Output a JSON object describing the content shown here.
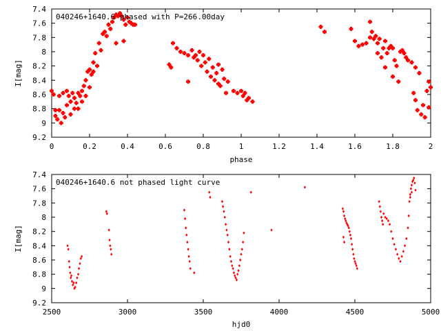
{
  "chart_data": [
    {
      "type": "scatter",
      "title": "040246+1640.6 phased with P=266.00day",
      "xlabel": "phase",
      "ylabel": "I[mag]",
      "xlim": [
        0,
        2
      ],
      "ylim": [
        9.2,
        7.4
      ],
      "y_inverted": true,
      "xticks": [
        0,
        0.2,
        0.4,
        0.6,
        0.8,
        1,
        1.2,
        1.4,
        1.6,
        1.8,
        2
      ],
      "xtick_labels": [
        "0",
        "0.2",
        "0.4",
        "0.6",
        "0.8",
        "1",
        "1.2",
        "1.4",
        "1.6",
        "1.8",
        "2"
      ],
      "yticks": [
        7.4,
        7.6,
        7.8,
        8,
        8.2,
        8.4,
        8.6,
        8.8,
        9,
        9.2
      ],
      "ytick_labels": [
        "7.4",
        "7.6",
        "7.8",
        "8",
        "8.2",
        "8.4",
        "8.6",
        "8.8",
        "9",
        "9.2"
      ],
      "grid": false,
      "marker_color": "#ff0000",
      "marker": "cross",
      "series": [
        {
          "points": [
            [
              0.0,
              8.55
            ],
            [
              0.01,
              8.6
            ],
            [
              0.02,
              8.82
            ],
            [
              0.02,
              8.9
            ],
            [
              0.03,
              8.95
            ],
            [
              0.04,
              8.62
            ],
            [
              0.04,
              8.82
            ],
            [
              0.05,
              9.0
            ],
            [
              0.06,
              8.58
            ],
            [
              0.06,
              8.86
            ],
            [
              0.07,
              8.92
            ],
            [
              0.08,
              8.55
            ],
            [
              0.08,
              8.75
            ],
            [
              0.09,
              8.62
            ],
            [
              0.1,
              8.7
            ],
            [
              0.1,
              8.88
            ],
            [
              0.11,
              8.58
            ],
            [
              0.12,
              8.8
            ],
            [
              0.12,
              8.65
            ],
            [
              0.13,
              8.72
            ],
            [
              0.14,
              8.58
            ],
            [
              0.14,
              8.8
            ],
            [
              0.15,
              8.62
            ],
            [
              0.16,
              8.55
            ],
            [
              0.16,
              8.7
            ],
            [
              0.17,
              8.48
            ],
            [
              0.18,
              8.62
            ],
            [
              0.18,
              8.4
            ],
            [
              0.19,
              8.28
            ],
            [
              0.2,
              8.5
            ],
            [
              0.2,
              8.25
            ],
            [
              0.21,
              8.32
            ],
            [
              0.22,
              8.15
            ],
            [
              0.22,
              8.28
            ],
            [
              0.23,
              8.02
            ],
            [
              0.24,
              8.2
            ],
            [
              0.25,
              7.88
            ],
            [
              0.26,
              7.98
            ],
            [
              0.27,
              7.75
            ],
            [
              0.28,
              7.72
            ],
            [
              0.29,
              7.78
            ],
            [
              0.3,
              7.62
            ],
            [
              0.31,
              7.68
            ],
            [
              0.32,
              7.58
            ],
            [
              0.33,
              7.52
            ],
            [
              0.34,
              7.48
            ],
            [
              0.35,
              7.5
            ],
            [
              0.36,
              7.46
            ],
            [
              0.37,
              7.5
            ],
            [
              0.38,
              7.55
            ],
            [
              0.39,
              7.62
            ],
            [
              0.4,
              7.52
            ],
            [
              0.41,
              7.58
            ],
            [
              0.42,
              7.6
            ],
            [
              0.43,
              7.62
            ],
            [
              0.44,
              7.62
            ],
            [
              0.38,
              7.85
            ],
            [
              0.34,
              7.88
            ],
            [
              0.62,
              8.18
            ],
            [
              0.63,
              8.22
            ],
            [
              0.64,
              7.88
            ],
            [
              0.66,
              7.95
            ],
            [
              0.68,
              8.0
            ],
            [
              0.7,
              8.02
            ],
            [
              0.72,
              8.05
            ],
            [
              0.72,
              8.42
            ],
            [
              0.74,
              7.98
            ],
            [
              0.75,
              8.08
            ],
            [
              0.76,
              8.05
            ],
            [
              0.77,
              8.12
            ],
            [
              0.78,
              8.0
            ],
            [
              0.79,
              8.2
            ],
            [
              0.8,
              8.05
            ],
            [
              0.81,
              8.15
            ],
            [
              0.82,
              8.28
            ],
            [
              0.83,
              8.1
            ],
            [
              0.84,
              8.35
            ],
            [
              0.85,
              8.22
            ],
            [
              0.86,
              8.4
            ],
            [
              0.87,
              8.3
            ],
            [
              0.88,
              8.45
            ],
            [
              0.88,
              8.18
            ],
            [
              0.89,
              8.48
            ],
            [
              0.9,
              8.25
            ],
            [
              0.91,
              8.38
            ],
            [
              0.92,
              8.58
            ],
            [
              0.93,
              8.42
            ],
            [
              0.96,
              8.55
            ],
            [
              0.98,
              8.58
            ],
            [
              1.0,
              8.55
            ],
            [
              1.01,
              8.62
            ],
            [
              1.02,
              8.58
            ],
            [
              1.03,
              8.68
            ],
            [
              1.04,
              8.65
            ],
            [
              1.06,
              8.7
            ],
            [
              1.42,
              7.65
            ],
            [
              1.44,
              7.72
            ],
            [
              1.58,
              7.68
            ],
            [
              1.6,
              7.85
            ],
            [
              1.62,
              7.92
            ],
            [
              1.64,
              7.9
            ],
            [
              1.66,
              7.88
            ],
            [
              1.68,
              7.58
            ],
            [
              1.68,
              7.8
            ],
            [
              1.69,
              7.72
            ],
            [
              1.7,
              7.82
            ],
            [
              1.71,
              7.78
            ],
            [
              1.72,
              7.88
            ],
            [
              1.72,
              8.02
            ],
            [
              1.73,
              7.82
            ],
            [
              1.74,
              8.08
            ],
            [
              1.75,
              7.95
            ],
            [
              1.76,
              7.85
            ],
            [
              1.76,
              8.22
            ],
            [
              1.77,
              8.02
            ],
            [
              1.78,
              7.95
            ],
            [
              1.79,
              7.92
            ],
            [
              1.8,
              8.35
            ],
            [
              1.8,
              7.95
            ],
            [
              1.81,
              8.12
            ],
            [
              1.82,
              8.2
            ],
            [
              1.83,
              8.42
            ],
            [
              1.84,
              8.0
            ],
            [
              1.85,
              7.98
            ],
            [
              1.86,
              8.02
            ],
            [
              1.87,
              8.08
            ],
            [
              1.88,
              8.12
            ],
            [
              1.9,
              8.15
            ],
            [
              1.91,
              8.58
            ],
            [
              1.92,
              8.22
            ],
            [
              1.92,
              8.68
            ],
            [
              1.93,
              8.82
            ],
            [
              1.94,
              8.3
            ],
            [
              1.95,
              8.88
            ],
            [
              1.96,
              8.75
            ],
            [
              1.97,
              8.92
            ],
            [
              1.98,
              8.55
            ],
            [
              1.99,
              8.42
            ],
            [
              1.99,
              8.78
            ],
            [
              2.0,
              8.5
            ]
          ]
        }
      ]
    },
    {
      "type": "scatter",
      "title": "040246+1640.6 not phased light curve",
      "xlabel": "hjd0",
      "ylabel": "I[mag]",
      "xlim": [
        2500,
        5000
      ],
      "ylim": [
        9.2,
        7.4
      ],
      "y_inverted": true,
      "xticks": [
        2500,
        3000,
        3500,
        4000,
        4500,
        5000
      ],
      "xtick_labels": [
        "2500",
        "3000",
        "3500",
        "4000",
        "4500",
        "5000"
      ],
      "yticks": [
        7.4,
        7.6,
        7.8,
        8,
        8.2,
        8.4,
        8.6,
        8.8,
        9,
        9.2
      ],
      "ytick_labels": [
        "7.4",
        "7.6",
        "7.8",
        "8",
        "8.2",
        "8.4",
        "8.6",
        "8.8",
        "9",
        "9.2"
      ],
      "grid": false,
      "marker_color": "#ff0000",
      "marker": "diamond",
      "series": [
        {
          "points": [
            [
              2605,
              8.4
            ],
            [
              2610,
              8.45
            ],
            [
              2615,
              8.62
            ],
            [
              2618,
              8.7
            ],
            [
              2622,
              8.78
            ],
            [
              2626,
              8.85
            ],
            [
              2630,
              8.82
            ],
            [
              2634,
              8.9
            ],
            [
              2640,
              8.95
            ],
            [
              2645,
              8.92
            ],
            [
              2650,
              9.0
            ],
            [
              2655,
              8.98
            ],
            [
              2662,
              8.92
            ],
            [
              2668,
              8.85
            ],
            [
              2675,
              8.8
            ],
            [
              2680,
              8.72
            ],
            [
              2686,
              8.65
            ],
            [
              2692,
              8.58
            ],
            [
              2698,
              8.55
            ],
            [
              2860,
              7.92
            ],
            [
              2865,
              7.95
            ],
            [
              2878,
              8.18
            ],
            [
              2882,
              8.32
            ],
            [
              2886,
              8.4
            ],
            [
              2890,
              8.45
            ],
            [
              2894,
              8.52
            ],
            [
              3375,
              7.9
            ],
            [
              3380,
              8.02
            ],
            [
              3385,
              8.15
            ],
            [
              3390,
              8.25
            ],
            [
              3395,
              8.35
            ],
            [
              3400,
              8.45
            ],
            [
              3405,
              8.55
            ],
            [
              3410,
              8.62
            ],
            [
              3415,
              8.72
            ],
            [
              3440,
              8.78
            ],
            [
              3540,
              7.65
            ],
            [
              3545,
              7.72
            ],
            [
              3625,
              7.78
            ],
            [
              3630,
              7.85
            ],
            [
              3636,
              7.92
            ],
            [
              3642,
              8.0
            ],
            [
              3648,
              8.1
            ],
            [
              3654,
              8.18
            ],
            [
              3660,
              8.25
            ],
            [
              3666,
              8.35
            ],
            [
              3672,
              8.45
            ],
            [
              3678,
              8.55
            ],
            [
              3684,
              8.62
            ],
            [
              3690,
              8.68
            ],
            [
              3696,
              8.72
            ],
            [
              3702,
              8.78
            ],
            [
              3708,
              8.82
            ],
            [
              3714,
              8.85
            ],
            [
              3720,
              8.88
            ],
            [
              3726,
              8.8
            ],
            [
              3732,
              8.75
            ],
            [
              3738,
              8.68
            ],
            [
              3744,
              8.6
            ],
            [
              3750,
              8.52
            ],
            [
              3756,
              8.45
            ],
            [
              3762,
              8.35
            ],
            [
              3768,
              8.22
            ],
            [
              3815,
              7.65
            ],
            [
              3950,
              8.18
            ],
            [
              4170,
              7.58
            ],
            [
              4420,
              7.88
            ],
            [
              4425,
              7.92
            ],
            [
              4430,
              7.98
            ],
            [
              4435,
              8.02
            ],
            [
              4440,
              8.05
            ],
            [
              4445,
              8.08
            ],
            [
              4450,
              8.1
            ],
            [
              4455,
              8.12
            ],
            [
              4460,
              8.15
            ],
            [
              4465,
              8.2
            ],
            [
              4470,
              8.25
            ],
            [
              4475,
              8.3
            ],
            [
              4480,
              8.38
            ],
            [
              4485,
              8.45
            ],
            [
              4490,
              8.52
            ],
            [
              4495,
              8.58
            ],
            [
              4500,
              8.62
            ],
            [
              4505,
              8.65
            ],
            [
              4510,
              8.68
            ],
            [
              4515,
              8.72
            ],
            [
              4425,
              8.28
            ],
            [
              4430,
              8.35
            ],
            [
              4660,
              7.78
            ],
            [
              4665,
              7.85
            ],
            [
              4670,
              7.92
            ],
            [
              4675,
              8.0
            ],
            [
              4680,
              8.05
            ],
            [
              4685,
              8.1
            ],
            [
              4690,
              7.95
            ],
            [
              4700,
              8.0
            ],
            [
              4710,
              8.02
            ],
            [
              4720,
              8.05
            ],
            [
              4730,
              8.1
            ],
            [
              4740,
              8.2
            ],
            [
              4750,
              8.3
            ],
            [
              4760,
              8.38
            ],
            [
              4770,
              8.45
            ],
            [
              4780,
              8.52
            ],
            [
              4790,
              8.58
            ],
            [
              4800,
              8.62
            ],
            [
              4810,
              8.55
            ],
            [
              4820,
              8.48
            ],
            [
              4830,
              8.4
            ],
            [
              4840,
              8.3
            ],
            [
              4850,
              8.15
            ],
            [
              4855,
              7.98
            ],
            [
              4860,
              7.78
            ],
            [
              4865,
              7.68
            ],
            [
              4870,
              7.6
            ],
            [
              4875,
              7.55
            ],
            [
              4880,
              7.5
            ],
            [
              4885,
              7.48
            ],
            [
              4890,
              7.45
            ],
            [
              4895,
              7.52
            ],
            [
              4900,
              7.62
            ],
            [
              4865,
              7.72
            ],
            [
              4875,
              7.65
            ]
          ]
        }
      ]
    }
  ]
}
